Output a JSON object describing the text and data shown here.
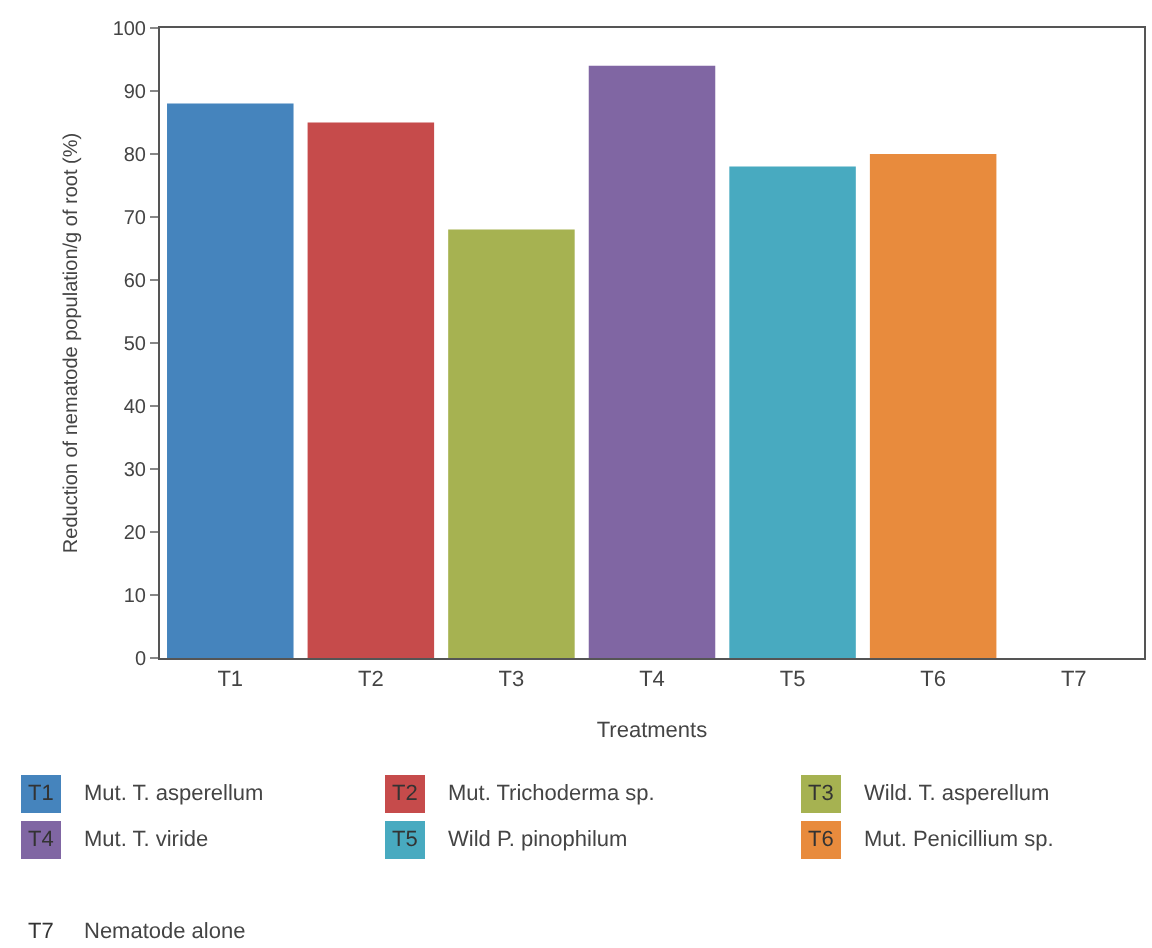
{
  "chart_data": {
    "type": "bar",
    "xlabel": "Treatments",
    "ylabel": "Reduction of nematode population/g of root (%)",
    "categories": [
      "T1",
      "T2",
      "T3",
      "T4",
      "T5",
      "T6",
      "T7"
    ],
    "values": [
      88,
      85,
      68,
      94,
      78,
      80,
      0
    ],
    "colors": [
      "#4584bd",
      "#c64b4b",
      "#a6b251",
      "#8066a3",
      "#48aac0",
      "#e88b3d",
      "#ffffff"
    ],
    "ylim": [
      0,
      100
    ],
    "yticks": [
      0,
      10,
      20,
      30,
      40,
      50,
      60,
      70,
      80,
      90,
      100
    ],
    "legend": false,
    "annotations": [
      "Mut. T. asperellum",
      "Mut. Trichoderma sp.",
      "Wild. T. asperellum",
      "Mut. T. viride",
      "Wild P. pinophilum",
      "Mut. Penicillium sp.",
      "Nematode alone"
    ]
  }
}
